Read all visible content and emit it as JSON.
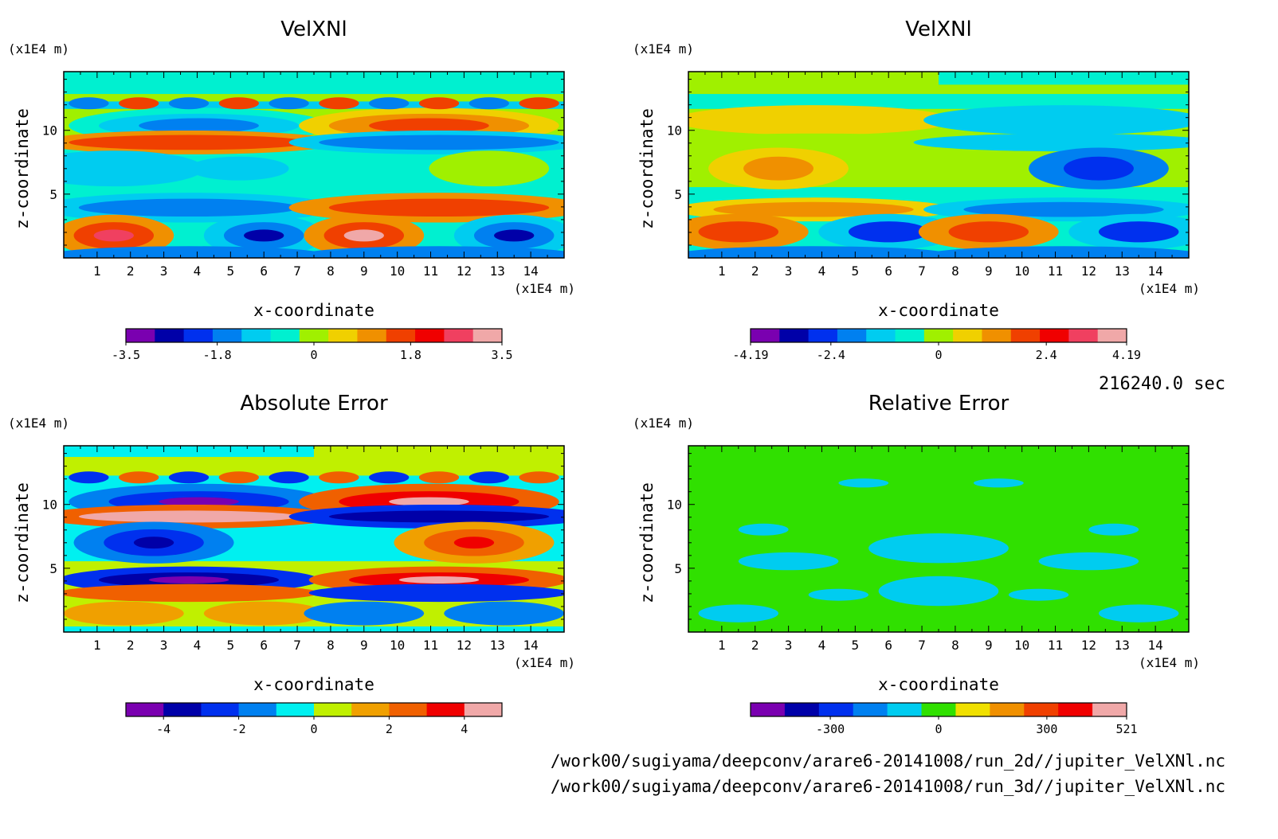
{
  "time_label": "216240.0 sec",
  "footer_paths": [
    "/work00/sugiyama/deepconv/arare6-20141008/run_2d//jupiter_VelXNl.nc",
    "/work00/sugiyama/deepconv/arare6-20141008/run_3d//jupiter_VelXNl.nc"
  ],
  "chart_data": [
    {
      "type": "heatmap",
      "title": "VelXNl",
      "xlabel": "x-coordinate",
      "ylabel": "z-coordinate",
      "x_unit": "(x1E4 m)",
      "y_unit": "(x1E4 m)",
      "xlim": [
        0,
        15
      ],
      "ylim": [
        0,
        14.6
      ],
      "x_ticks": [
        1,
        2,
        3,
        4,
        5,
        6,
        7,
        8,
        9,
        10,
        11,
        12,
        13,
        14
      ],
      "y_ticks": [
        5,
        10
      ],
      "colorbar": {
        "range": [
          -3.5,
          3.5
        ],
        "tick_values": [
          -3.5,
          -1.8,
          0,
          1.8,
          3.5
        ],
        "tick_labels": [
          "-3.5",
          "-1.8",
          "0",
          "1.8",
          "3.5"
        ],
        "colors": [
          "#7a00b0",
          "#0000a8",
          "#0030ee",
          "#0080f0",
          "#00ccf0",
          "#00f0d0",
          "#a0f000",
          "#f0d000",
          "#f09000",
          "#f04000",
          "#f00000",
          "#f04060",
          "#f0a8a8"
        ]
      }
    },
    {
      "type": "heatmap",
      "title": "VelXNl",
      "xlabel": "x-coordinate",
      "ylabel": "z-coordinate",
      "x_unit": "(x1E4 m)",
      "y_unit": "(x1E4 m)",
      "xlim": [
        0,
        15
      ],
      "ylim": [
        0,
        14.6
      ],
      "x_ticks": [
        1,
        2,
        3,
        4,
        5,
        6,
        7,
        8,
        9,
        10,
        11,
        12,
        13,
        14
      ],
      "y_ticks": [
        5,
        10
      ],
      "colorbar": {
        "range": [
          -4.19,
          4.19
        ],
        "tick_values": [
          -4.19,
          -2.4,
          0,
          2.4,
          4.19
        ],
        "tick_labels": [
          "-4.19",
          "-2.4",
          "0",
          "2.4",
          "4.19"
        ],
        "colors": [
          "#7a00b0",
          "#0000a8",
          "#0030ee",
          "#0080f0",
          "#00ccf0",
          "#00f0d0",
          "#a0f000",
          "#f0d000",
          "#f09000",
          "#f04000",
          "#f00000",
          "#f04060",
          "#f0a8a8"
        ]
      }
    },
    {
      "type": "heatmap",
      "title": "Absolute Error",
      "xlabel": "x-coordinate",
      "ylabel": "z-coordinate",
      "x_unit": "(x1E4 m)",
      "y_unit": "(x1E4 m)",
      "xlim": [
        0,
        15
      ],
      "ylim": [
        0,
        14.6
      ],
      "x_ticks": [
        1,
        2,
        3,
        4,
        5,
        6,
        7,
        8,
        9,
        10,
        11,
        12,
        13,
        14
      ],
      "y_ticks": [
        5,
        10
      ],
      "colorbar": {
        "range": [
          -5,
          5
        ],
        "tick_values": [
          -4,
          -2,
          0,
          2,
          4
        ],
        "tick_labels": [
          "-4",
          "-2",
          "0",
          "2",
          "4"
        ],
        "colors": [
          "#7a00b0",
          "#0000a8",
          "#0030ee",
          "#0080f0",
          "#00f0f0",
          "#c0f000",
          "#f0a000",
          "#f06000",
          "#f00000",
          "#f0a8a8"
        ]
      }
    },
    {
      "type": "heatmap",
      "title": "Relative Error",
      "xlabel": "x-coordinate",
      "ylabel": "z-coordinate",
      "x_unit": "(x1E4 m)",
      "y_unit": "(x1E4 m)",
      "xlim": [
        0,
        15
      ],
      "ylim": [
        0,
        14.6
      ],
      "x_ticks": [
        1,
        2,
        3,
        4,
        5,
        6,
        7,
        8,
        9,
        10,
        11,
        12,
        13,
        14
      ],
      "y_ticks": [
        5,
        10
      ],
      "colorbar": {
        "range": [
          -521,
          521
        ],
        "tick_values": [
          -300,
          0,
          300,
          521
        ],
        "tick_labels": [
          "-300",
          "0",
          "300",
          "521"
        ],
        "colors": [
          "#7a00b0",
          "#0000a8",
          "#0030ee",
          "#0080f0",
          "#00ccf0",
          "#30e000",
          "#f0e000",
          "#f09000",
          "#f04000",
          "#f00000",
          "#f0a8a8"
        ]
      }
    }
  ]
}
